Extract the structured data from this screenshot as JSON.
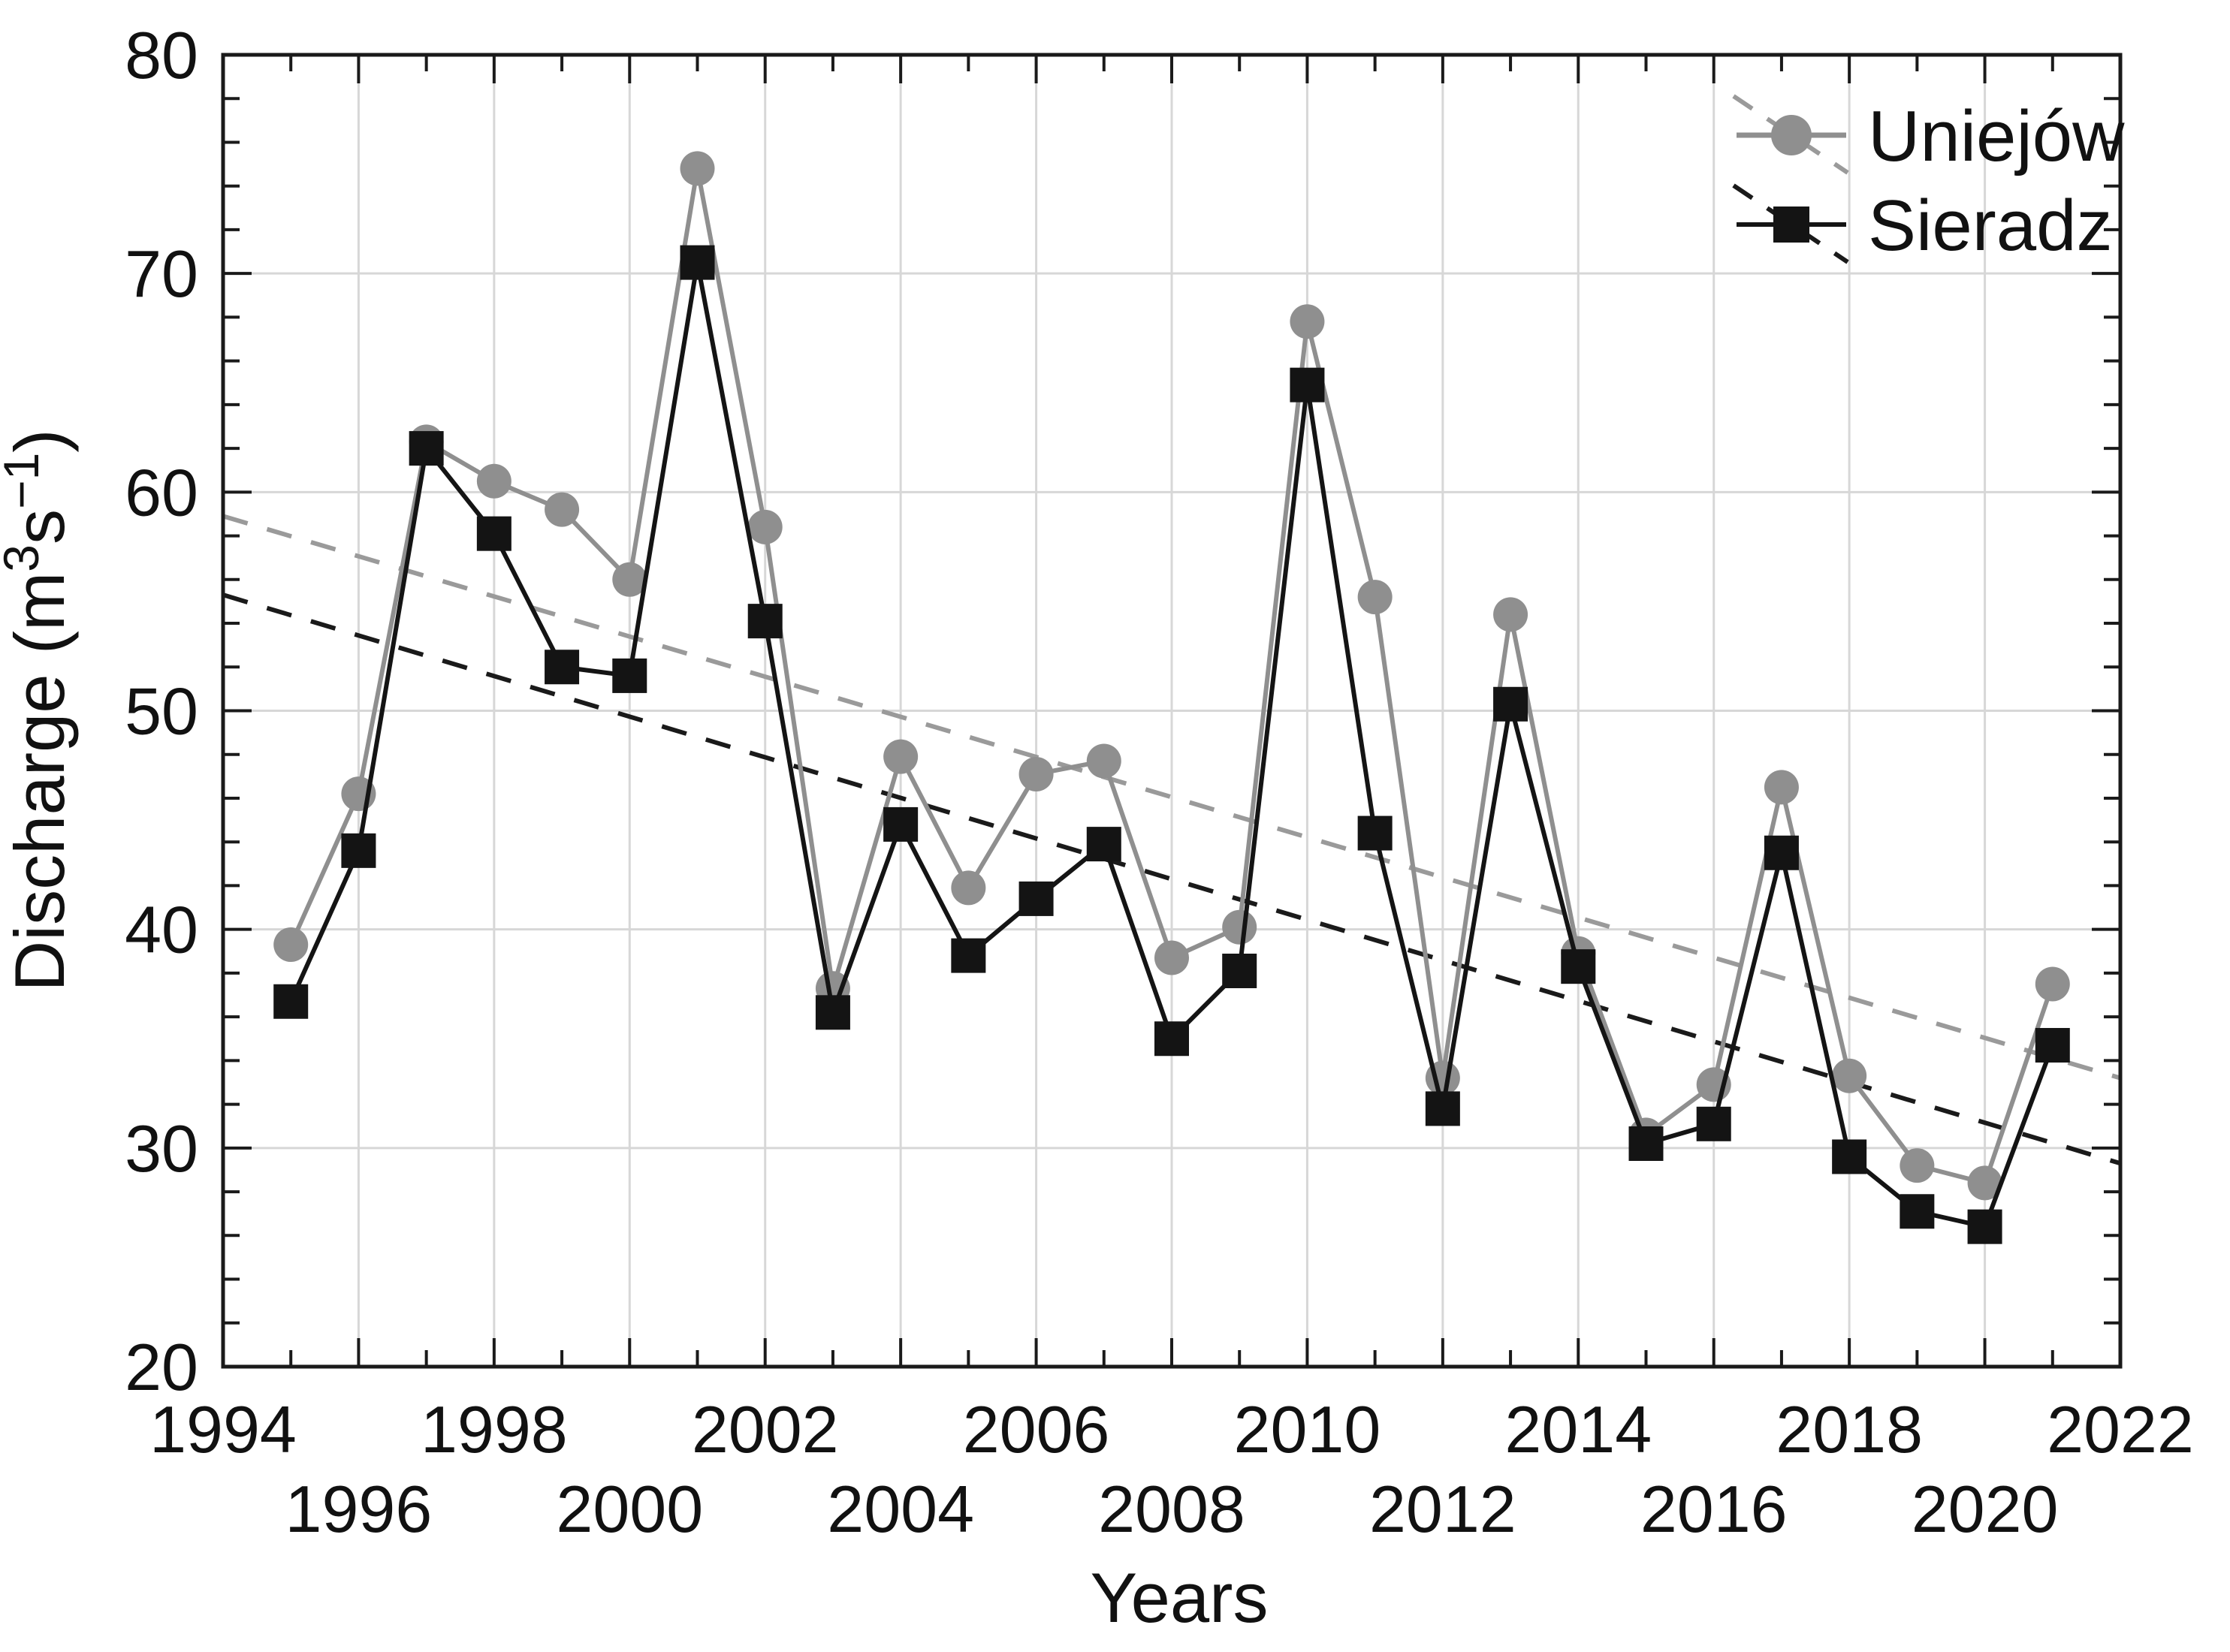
{
  "chart_data": {
    "type": "line",
    "title": "",
    "xlabel": "Years",
    "ylabel": "Discharge (m³s⁻¹)",
    "ylabel_parts": [
      {
        "t": "Discharge (m"
      },
      {
        "t": "3",
        "sup": true
      },
      {
        "t": "s"
      },
      {
        "t": "−1",
        "sup": true
      },
      {
        "t": ")"
      }
    ],
    "x_range": [
      1994,
      2022
    ],
    "y_range": [
      20,
      80
    ],
    "grid": true,
    "legend_position": "top-right-inside",
    "x_tick_labels_row1": [
      1994,
      1998,
      2002,
      2006,
      2010,
      2014,
      2018,
      2022
    ],
    "x_tick_labels_row2": [
      1996,
      2000,
      2004,
      2008,
      2012,
      2016,
      2020
    ],
    "y_tick_labels": [
      20,
      30,
      40,
      50,
      60,
      70,
      80
    ],
    "x_major_ticks": [
      1994,
      1996,
      1998,
      2000,
      2002,
      2004,
      2006,
      2008,
      2010,
      2012,
      2014,
      2016,
      2018,
      2020,
      2022
    ],
    "x_minor_ticks": [
      1995,
      1997,
      1999,
      2001,
      2003,
      2005,
      2007,
      2009,
      2011,
      2013,
      2015,
      2017,
      2019,
      2021
    ],
    "y_major_ticks": [
      20,
      30,
      40,
      50,
      60,
      70,
      80
    ],
    "y_minor_ticks": [
      22,
      24,
      26,
      28,
      32,
      34,
      36,
      38,
      42,
      44,
      46,
      48,
      52,
      54,
      56,
      58,
      62,
      64,
      66,
      68,
      72,
      74,
      76,
      78
    ],
    "x_gridlines": [
      1996,
      1998,
      2000,
      2002,
      2004,
      2006,
      2008,
      2010,
      2012,
      2014,
      2016,
      2018,
      2020
    ],
    "y_gridlines": [
      30,
      40,
      50,
      60,
      70
    ],
    "years": [
      1995,
      1996,
      1997,
      1998,
      1999,
      2000,
      2001,
      2002,
      2003,
      2004,
      2005,
      2006,
      2007,
      2008,
      2009,
      2010,
      2011,
      2012,
      2013,
      2014,
      2015,
      2016,
      2017,
      2018,
      2019,
      2020,
      2021
    ],
    "series": [
      {
        "name": "Uniejów",
        "marker": "circle",
        "color": "#8f8f8f",
        "trend_color": "#9a9a9a",
        "values": [
          39.3,
          46.2,
          62.3,
          60.5,
          59.2,
          56.0,
          74.8,
          58.4,
          37.3,
          47.9,
          41.9,
          47.1,
          47.7,
          38.7,
          40.1,
          67.8,
          55.2,
          33.2,
          54.4,
          38.9,
          30.6,
          32.9,
          46.5,
          33.3,
          29.2,
          28.4,
          37.5
        ],
        "trend": {
          "x_start": 1994,
          "y_start": 58.9,
          "x_end": 2022,
          "y_end": 33.2
        }
      },
      {
        "name": "Sieradz",
        "marker": "square",
        "color": "#141414",
        "trend_color": "#1a1a1a",
        "values": [
          36.7,
          43.6,
          62.0,
          58.1,
          52.0,
          51.6,
          70.5,
          54.1,
          36.2,
          44.8,
          38.8,
          41.4,
          43.9,
          35.0,
          38.1,
          64.9,
          44.4,
          31.8,
          50.3,
          38.3,
          30.2,
          31.1,
          43.5,
          29.6,
          27.1,
          26.4,
          34.7
        ],
        "trend": {
          "x_start": 1994,
          "y_start": 55.3,
          "x_end": 2022,
          "y_end": 29.3
        }
      }
    ],
    "plot_colors": {
      "background": "#ffffff",
      "gridline": "#d7d7d7",
      "axis": "#1a1a1a"
    }
  }
}
